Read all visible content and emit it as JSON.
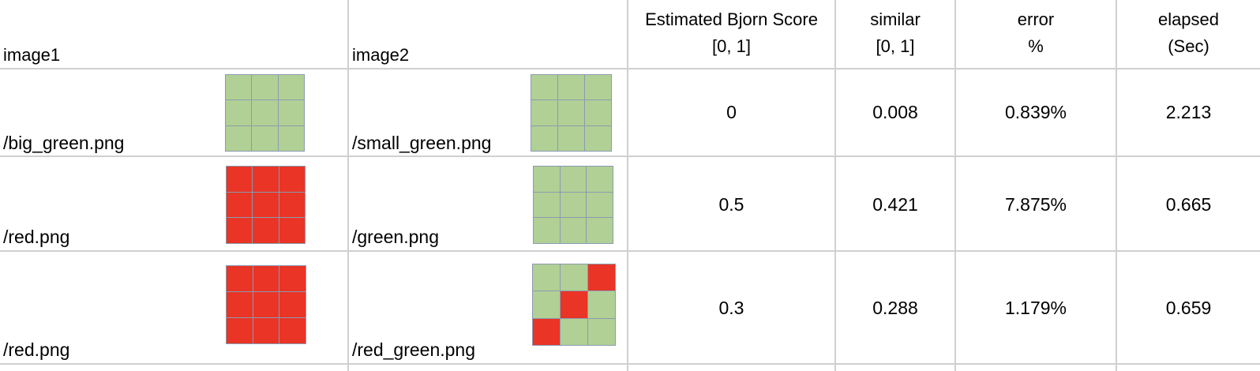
{
  "headers": {
    "image1": "image1",
    "image2": "image2",
    "score_line1": "Estimated Bjorn Score",
    "score_line2": "[0, 1]",
    "similar_line1": "similar",
    "similar_line2": "[0, 1]",
    "error_line1": "error",
    "error_line2": "%",
    "elapsed_line1": "elapsed",
    "elapsed_line2": "(Sec)"
  },
  "colors": {
    "green": "#b1d095",
    "red": "#e93426",
    "grid": "#8a9bb0",
    "border": "#d0d0d0"
  },
  "rows": [
    {
      "image1_path": "/big_green.png",
      "image1_pattern": [
        "green",
        "green",
        "green",
        "green",
        "green",
        "green",
        "green",
        "green",
        "green"
      ],
      "image2_path": "/small_green.png",
      "image2_pattern": [
        "green",
        "green",
        "green",
        "green",
        "green",
        "green",
        "green",
        "green",
        "green"
      ],
      "score": "0",
      "similar": "0.008",
      "error": "0.839%",
      "elapsed": "2.213"
    },
    {
      "image1_path": "/red.png",
      "image1_pattern": [
        "red",
        "red",
        "red",
        "red",
        "red",
        "red",
        "red",
        "red",
        "red"
      ],
      "image2_path": "/green.png",
      "image2_pattern": [
        "green",
        "green",
        "green",
        "green",
        "green",
        "green",
        "green",
        "green",
        "green"
      ],
      "score": "0.5",
      "similar": "0.421",
      "error": "7.875%",
      "elapsed": "0.665"
    },
    {
      "image1_path": "/red.png",
      "image1_pattern": [
        "red",
        "red",
        "red",
        "red",
        "red",
        "red",
        "red",
        "red",
        "red"
      ],
      "image2_path": "/red_green.png",
      "image2_pattern": [
        "green",
        "green",
        "red",
        "green",
        "red",
        "green",
        "red",
        "green",
        "green"
      ],
      "score": "0.3",
      "similar": "0.288",
      "error": "1.179%",
      "elapsed": "0.659"
    }
  ]
}
